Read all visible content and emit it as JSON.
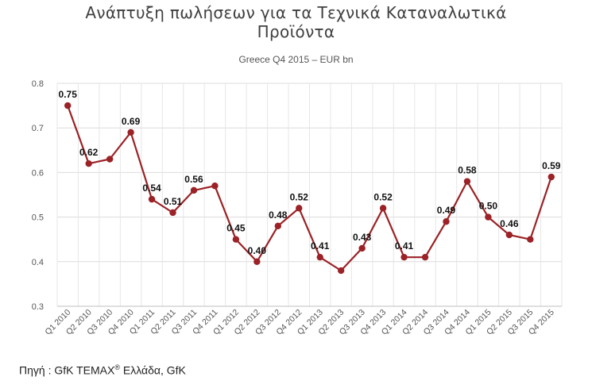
{
  "header": {
    "title_line1": "Ανάπτυξη πωλήσεων για τα Τεχνικά Καταναλωτικά",
    "title_line2": "Προϊόντα",
    "subtitle": "Greece Q4 2015 – EUR bn"
  },
  "source": {
    "prefix": "Πηγή : GfK TEMAX",
    "reg_mark": "®",
    "suffix": " Ελλάδα, GfK"
  },
  "chart_data": {
    "type": "line",
    "title": "Ανάπτυξη πωλήσεων για τα Τεχνικά Καταναλωτικά Προϊόντα",
    "subtitle": "Greece Q4 2015 – EUR bn",
    "xlabel": "",
    "ylabel": "",
    "ylim": [
      0.3,
      0.8
    ],
    "yticks": [
      "0.3",
      "0.4",
      "0.5",
      "0.6",
      "0.7",
      "0.8"
    ],
    "grid": true,
    "line_color": "#9b2226",
    "categories": [
      "Q1 2010",
      "Q2 2010",
      "Q3 2010",
      "Q4 2010",
      "Q1 2011",
      "Q2 2011",
      "Q3 2011",
      "Q4 2011",
      "Q1 2012",
      "Q2 2012",
      "Q3 2012",
      "Q4 2012",
      "Q1 2013",
      "Q2 2013",
      "Q3 2013",
      "Q4 2013",
      "Q1 2014",
      "Q2 2014",
      "Q3 2014",
      "Q4 2014",
      "Q1 2015",
      "Q2 2015",
      "Q3 2015",
      "Q4 2015"
    ],
    "values": [
      0.75,
      0.62,
      0.63,
      0.69,
      0.54,
      0.51,
      0.56,
      0.57,
      0.45,
      0.4,
      0.48,
      0.52,
      0.41,
      0.38,
      0.43,
      0.52,
      0.41,
      0.41,
      0.49,
      0.58,
      0.5,
      0.46,
      0.45,
      0.59
    ],
    "data_labels": [
      "0.75",
      "0.62",
      "",
      "0.69",
      "0.54",
      "0.51",
      "0.56",
      "",
      "0.45",
      "0.40",
      "0.48",
      "0.52",
      "0.41",
      "",
      "0.43",
      "0.52",
      "0.41",
      "",
      "0.49",
      "0.58",
      "0.50",
      "0.46",
      "",
      "0.59"
    ]
  }
}
